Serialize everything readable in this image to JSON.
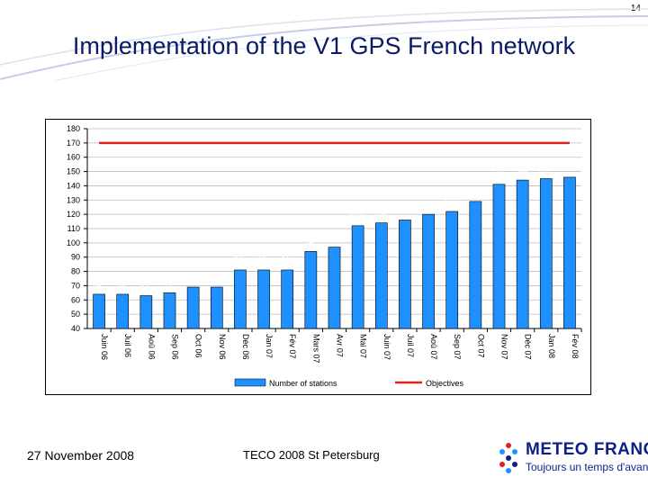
{
  "slide_number": "14",
  "title": "Implementation of the V1 GPS French network",
  "footer": {
    "date": "27  November  2008",
    "event": "TECO 2008 St Petersburg"
  },
  "logo": {
    "name": "METEO FRANCE",
    "tagline": "Toujours un temps d'avance",
    "color": "#0c1f8a"
  },
  "chart_data": {
    "type": "bar",
    "categories": [
      "Juin 06",
      "Juil 06",
      "Aoû 06",
      "Sep 06",
      "Oct 06",
      "Nov 06",
      "Déc 06",
      "Jan 07",
      "Fév 07",
      "Mars 07",
      "Avr 07",
      "Mai 07",
      "Juin 07",
      "Juil 07",
      "Aoû 07",
      "Sep 07",
      "Oct 07",
      "Nov 07",
      "Déc 07",
      "Jan 08",
      "Fév 08"
    ],
    "series": [
      {
        "name": "Number of stations",
        "values": [
          64,
          64,
          63,
          65,
          69,
          69,
          81,
          81,
          81,
          94,
          97,
          112,
          114,
          116,
          120,
          122,
          129,
          141,
          144,
          145,
          146
        ],
        "color": "#1e90ff"
      },
      {
        "name": "Objectives",
        "type": "line",
        "value": 170,
        "color": "#e02020"
      }
    ],
    "y_ticks": [
      40,
      50,
      60,
      70,
      80,
      90,
      100,
      110,
      120,
      130,
      140,
      150,
      160,
      170,
      180
    ],
    "ylim": [
      40,
      180
    ],
    "grid": true,
    "data_labels": true,
    "legend_position": "bottom"
  }
}
